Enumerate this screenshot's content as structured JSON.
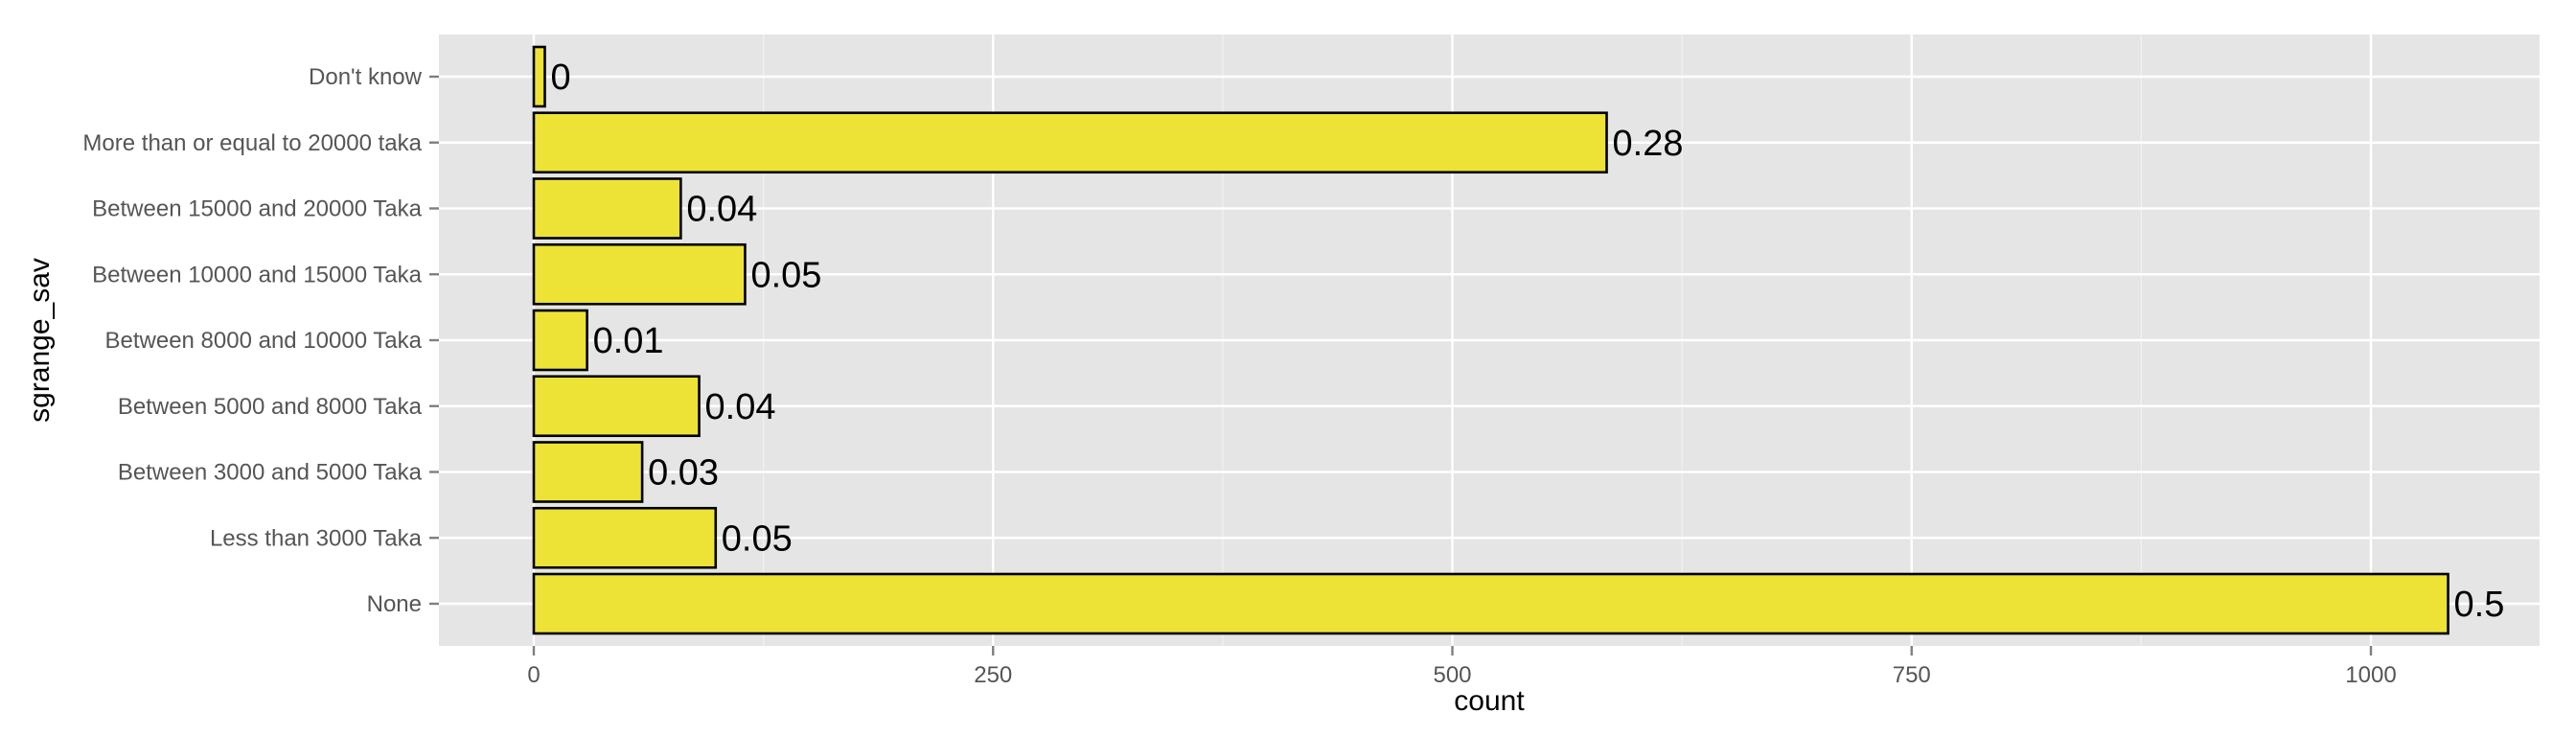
{
  "chart_data": {
    "type": "bar",
    "orientation": "horizontal",
    "categories": [
      "None",
      "Less than 3000 Taka",
      "Between 3000 and 5000 Taka",
      "Between 5000  and 8000 Taka",
      "Between 8000  and 10000 Taka",
      "Between 10000 and 15000 Taka",
      "Between 15000 and 20000 Taka",
      "More than or equal to 20000 taka",
      "Don't know"
    ],
    "values": [
      1042,
      99,
      59,
      90,
      29,
      115,
      80,
      584,
      6
    ],
    "data_labels": [
      "0.5",
      "0.05",
      "0.03",
      "0.04",
      "0.01",
      "0.05",
      "0.04",
      "0.28",
      "0"
    ],
    "xlabel": "count",
    "ylabel": "sgrange_sav",
    "xlim": [
      -50,
      1100
    ],
    "xticks": [
      0,
      250,
      500,
      750,
      1000
    ],
    "grid": true,
    "legend": "none",
    "colors": {
      "bar_fill": "#ede337",
      "bar_outline": "#000000",
      "panel_background": "#e5e5e5",
      "grid": "#ffffff"
    }
  }
}
